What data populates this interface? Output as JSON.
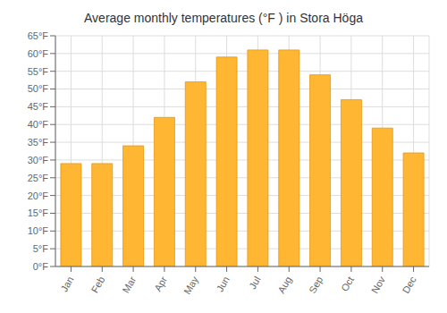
{
  "chart_data": {
    "type": "bar",
    "title": "Average monthly temperatures (°F ) in Stora Höga",
    "categories": [
      "Jan",
      "Feb",
      "Mar",
      "Apr",
      "May",
      "Jun",
      "Jul",
      "Aug",
      "Sep",
      "Oct",
      "Nov",
      "Dec"
    ],
    "values": [
      29,
      29,
      34,
      42,
      52,
      59,
      61,
      61,
      54,
      47,
      39,
      32
    ],
    "color": "#FFB733",
    "ylim": [
      0,
      65
    ],
    "yticks": [
      {
        "value": 0,
        "label": "0°F"
      },
      {
        "value": 5,
        "label": "5°F"
      },
      {
        "value": 10,
        "label": "10°F"
      },
      {
        "value": 15,
        "label": "15°F"
      },
      {
        "value": 20,
        "label": "20°F"
      },
      {
        "value": 25,
        "label": "25°F"
      },
      {
        "value": 30,
        "label": "30°F"
      },
      {
        "value": 35,
        "label": "35°F"
      },
      {
        "value": 40,
        "label": "40°F"
      },
      {
        "value": 45,
        "label": "45°F"
      },
      {
        "value": 50,
        "label": "50°F"
      },
      {
        "value": 55,
        "label": "55°F"
      },
      {
        "value": 60,
        "label": "60°F"
      },
      {
        "value": 65,
        "label": "65°F"
      }
    ],
    "grid": true
  }
}
